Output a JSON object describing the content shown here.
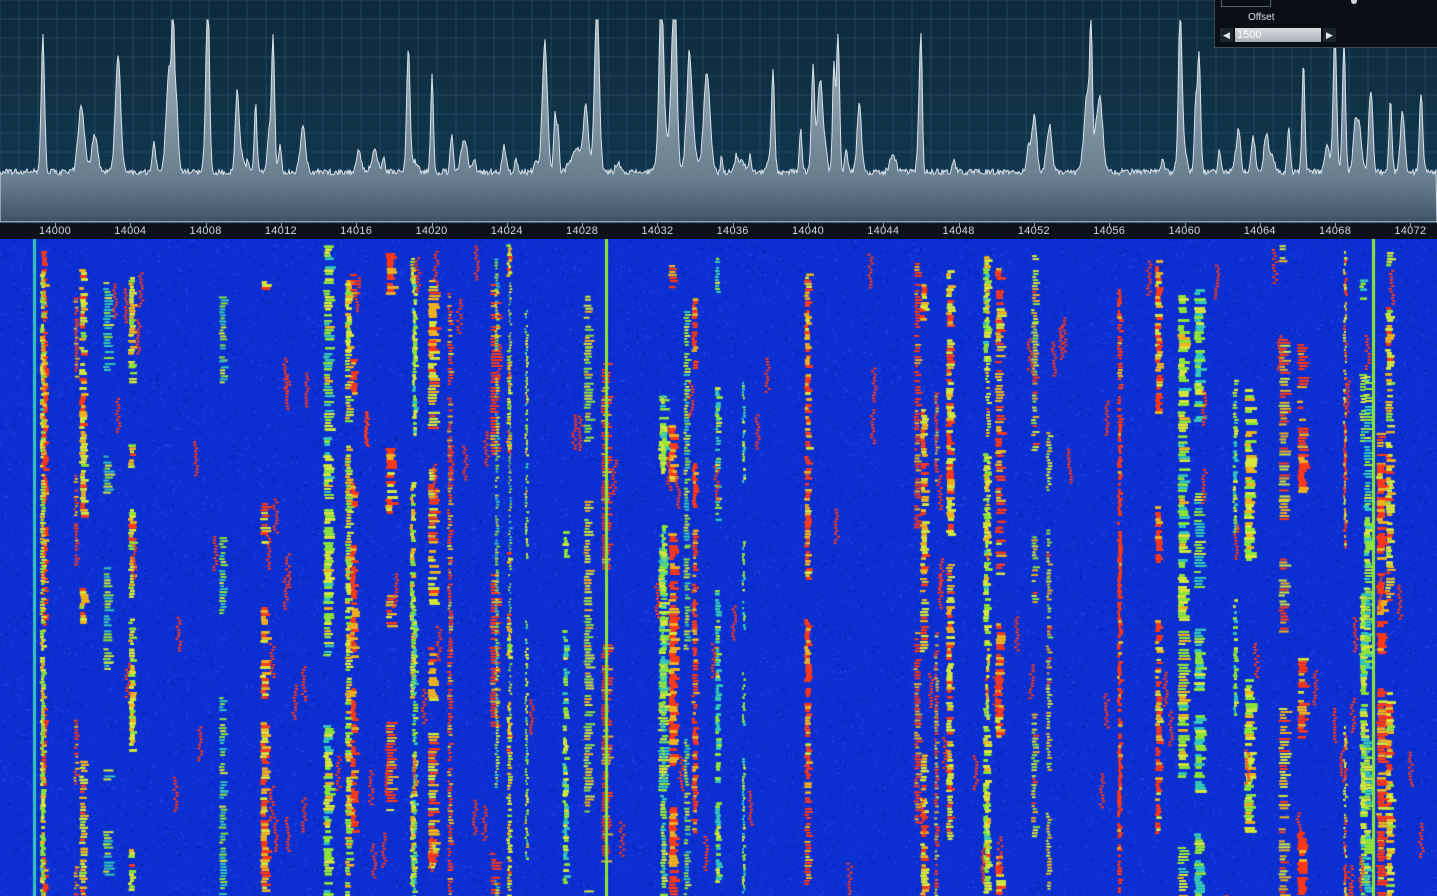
{
  "frequency_scale": {
    "labels": [
      "14000",
      "14004",
      "14008",
      "14012",
      "14016",
      "14020",
      "14024",
      "14028",
      "14032",
      "14036",
      "14040",
      "14044",
      "14048",
      "14052",
      "14056",
      "14060",
      "14064",
      "14068",
      "14072"
    ]
  },
  "offset_control": {
    "label": "Offset",
    "value": "1500",
    "decrease_icon": "left-triangle-icon",
    "increase_icon": "right-triangle-icon"
  },
  "colors": {
    "spectrum_bg": "#0e2a3c",
    "spectrum_trace": "#d8e2e8",
    "waterfall_low": "#0b2fd0",
    "waterfall_mid": "#8ee63a",
    "waterfall_high": "#ff3a1a"
  }
}
